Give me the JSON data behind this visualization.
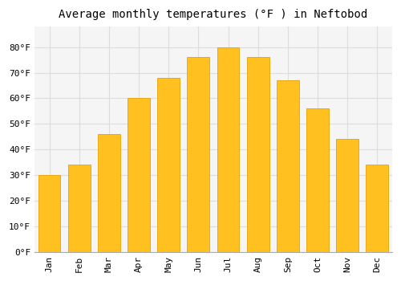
{
  "title": "Average monthly temperatures (°F ) in Neftobod",
  "months": [
    "Jan",
    "Feb",
    "Mar",
    "Apr",
    "May",
    "Jun",
    "Jul",
    "Aug",
    "Sep",
    "Oct",
    "Nov",
    "Dec"
  ],
  "values": [
    30,
    34,
    46,
    60,
    68,
    76,
    80,
    76,
    67,
    56,
    44,
    34
  ],
  "bar_color": "#FFC020",
  "bar_edge_color": "#E8A000",
  "background_color": "#FFFFFF",
  "plot_bg_color": "#F5F5F5",
  "grid_color": "#DDDDDD",
  "ylim": [
    0,
    88
  ],
  "yticks": [
    0,
    10,
    20,
    30,
    40,
    50,
    60,
    70,
    80
  ],
  "ytick_labels": [
    "0°F",
    "10°F",
    "20°F",
    "30°F",
    "40°F",
    "50°F",
    "60°F",
    "70°F",
    "80°F"
  ],
  "title_fontsize": 10,
  "tick_fontsize": 8,
  "font_family": "monospace"
}
